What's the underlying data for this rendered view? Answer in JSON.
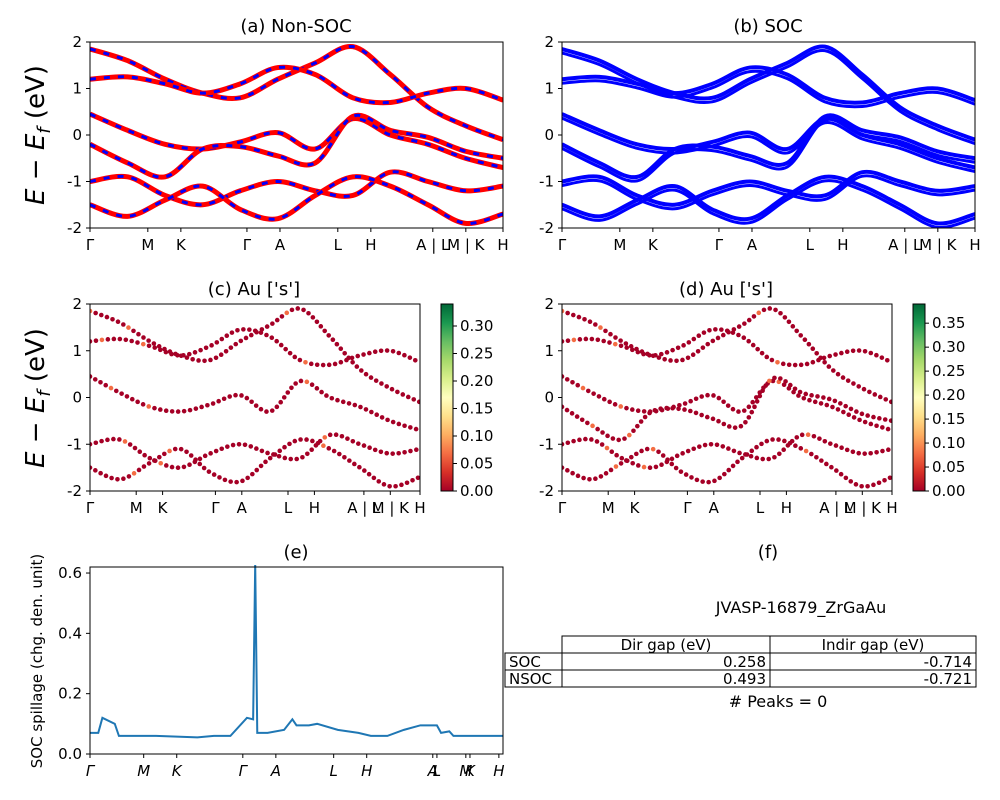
{
  "shared": {
    "ylabel_bands": "E − E_f (eV)",
    "k_labels": [
      "Γ",
      "M",
      "K",
      "Γ",
      "A",
      "L",
      "H",
      "A | L",
      "M | K",
      "H"
    ],
    "k_labels_short": [
      "Γ",
      "M",
      "K",
      "Γ",
      "A",
      "L",
      "H",
      "A | L",
      "M | K",
      "H"
    ]
  },
  "chart_data": [
    {
      "id": "a",
      "type": "line",
      "title": "(a) Non-SOC",
      "ylabel": "$E - E_f$ (eV)",
      "ylim": [
        -2,
        2
      ],
      "yticks": [
        -2,
        -1,
        0,
        1,
        2
      ],
      "xticks": [
        "Γ",
        "M",
        "K",
        "Γ",
        "A",
        "L",
        "H",
        "A | L",
        "M | K",
        "H"
      ],
      "colors": [
        "#ff0000",
        "#0000ff"
      ],
      "series": [
        {
          "values": [
            1.85,
            1.6,
            1.2,
            0.9,
            0.8,
            1.2,
            1.55,
            1.9,
            1.3,
            0.6,
            0.2,
            -0.1
          ]
        },
        {
          "values": [
            1.2,
            1.25,
            1.1,
            0.9,
            1.1,
            1.45,
            1.3,
            0.8,
            0.7,
            0.9,
            1.0,
            0.75
          ]
        },
        {
          "values": [
            0.45,
            0.1,
            -0.2,
            -0.3,
            -0.15,
            0.05,
            -0.3,
            0.35,
            0.0,
            -0.2,
            -0.5,
            -0.7
          ]
        },
        {
          "values": [
            -0.2,
            -0.6,
            -0.9,
            -0.3,
            -0.25,
            -0.45,
            -0.6,
            0.4,
            0.1,
            -0.05,
            -0.35,
            -0.5
          ]
        },
        {
          "values": [
            -1.0,
            -0.9,
            -1.3,
            -1.5,
            -1.2,
            -1.0,
            -1.2,
            -1.3,
            -0.8,
            -1.0,
            -1.2,
            -1.1
          ]
        },
        {
          "values": [
            -1.5,
            -1.75,
            -1.4,
            -1.1,
            -1.6,
            -1.8,
            -1.3,
            -0.9,
            -1.1,
            -1.5,
            -1.9,
            -1.7
          ]
        }
      ]
    },
    {
      "id": "b",
      "type": "line",
      "title": "(b) SOC",
      "ylim": [
        -2,
        2
      ],
      "yticks": [
        -2,
        -1,
        0,
        1,
        2
      ],
      "xticks": [
        "Γ",
        "M",
        "K",
        "Γ",
        "A",
        "L",
        "H",
        "A | L",
        "M | K",
        "H"
      ],
      "colors": [
        "#0000ff"
      ],
      "series": [
        {
          "values": [
            1.85,
            1.6,
            1.2,
            0.9,
            0.8,
            1.2,
            1.55,
            1.9,
            1.3,
            0.6,
            0.2,
            -0.1
          ]
        },
        {
          "values": [
            1.2,
            1.25,
            1.1,
            0.9,
            1.1,
            1.45,
            1.3,
            0.8,
            0.7,
            0.9,
            1.0,
            0.75
          ]
        },
        {
          "values": [
            0.45,
            0.1,
            -0.2,
            -0.3,
            -0.15,
            0.05,
            -0.3,
            0.35,
            0.0,
            -0.2,
            -0.5,
            -0.7
          ]
        },
        {
          "values": [
            -0.2,
            -0.6,
            -0.9,
            -0.3,
            -0.25,
            -0.45,
            -0.6,
            0.4,
            0.1,
            -0.05,
            -0.35,
            -0.5
          ]
        },
        {
          "values": [
            -1.0,
            -0.9,
            -1.3,
            -1.5,
            -1.2,
            -1.0,
            -1.2,
            -1.3,
            -0.8,
            -1.0,
            -1.2,
            -1.1
          ]
        },
        {
          "values": [
            -1.5,
            -1.75,
            -1.4,
            -1.1,
            -1.6,
            -1.8,
            -1.3,
            -0.9,
            -1.1,
            -1.5,
            -1.9,
            -1.7
          ]
        }
      ]
    },
    {
      "id": "c",
      "type": "scatter",
      "title": "(c)  Au ['s']",
      "ylabel": "$E - E_f$ (eV)",
      "ylim": [
        -2,
        2
      ],
      "yticks": [
        -2,
        -1,
        0,
        1,
        2
      ],
      "xticks": [
        "Γ",
        "M",
        "K",
        "Γ",
        "A",
        "L",
        "H",
        "A | L",
        "M | K",
        "H"
      ],
      "colorbar": {
        "min": 0,
        "max": 0.34,
        "ticks": [
          "0.00",
          "0.05",
          "0.10",
          "0.15",
          "0.20",
          "0.25",
          "0.30"
        ],
        "cmap": "RdYlGn"
      },
      "series": [
        {
          "values": [
            1.85,
            1.6,
            1.2,
            0.9,
            0.8,
            1.2,
            1.55,
            1.9,
            1.3,
            0.6,
            0.2,
            -0.1
          ]
        },
        {
          "values": [
            1.2,
            1.25,
            1.1,
            0.9,
            1.1,
            1.45,
            1.3,
            0.8,
            0.7,
            0.9,
            1.0,
            0.75
          ]
        },
        {
          "values": [
            0.45,
            0.1,
            -0.2,
            -0.3,
            -0.15,
            0.05,
            -0.3,
            0.35,
            0.0,
            -0.2,
            -0.5,
            -0.7
          ]
        },
        {
          "values": [
            -1.0,
            -0.9,
            -1.3,
            -1.5,
            -1.2,
            -1.0,
            -1.2,
            -1.3,
            -0.8,
            -1.0,
            -1.2,
            -1.1
          ]
        },
        {
          "values": [
            -1.5,
            -1.75,
            -1.4,
            -1.1,
            -1.6,
            -1.8,
            -1.3,
            -0.9,
            -1.1,
            -1.5,
            -1.9,
            -1.7
          ]
        }
      ]
    },
    {
      "id": "d",
      "type": "scatter",
      "title": "(d) Au ['s']",
      "ylim": [
        -2,
        2
      ],
      "yticks": [
        -2,
        -1,
        0,
        1,
        2
      ],
      "xticks": [
        "Γ",
        "M",
        "K",
        "Γ",
        "A",
        "L",
        "H",
        "A | L",
        "M | K",
        "H"
      ],
      "colorbar": {
        "min": 0,
        "max": 0.39,
        "ticks": [
          "0.00",
          "0.05",
          "0.10",
          "0.15",
          "0.20",
          "0.25",
          "0.30",
          "0.35"
        ],
        "cmap": "RdYlGn"
      },
      "series": [
        {
          "values": [
            1.85,
            1.6,
            1.2,
            0.9,
            0.8,
            1.2,
            1.55,
            1.9,
            1.3,
            0.6,
            0.2,
            -0.1
          ]
        },
        {
          "values": [
            1.2,
            1.25,
            1.1,
            0.9,
            1.1,
            1.45,
            1.3,
            0.8,
            0.7,
            0.9,
            1.0,
            0.75
          ]
        },
        {
          "values": [
            0.45,
            0.1,
            -0.2,
            -0.3,
            -0.15,
            0.05,
            -0.3,
            0.35,
            0.0,
            -0.2,
            -0.5,
            -0.7
          ]
        },
        {
          "values": [
            -0.2,
            -0.6,
            -0.9,
            -0.3,
            -0.25,
            -0.45,
            -0.6,
            0.4,
            0.1,
            -0.05,
            -0.35,
            -0.5
          ]
        },
        {
          "values": [
            -1.0,
            -0.9,
            -1.3,
            -1.5,
            -1.2,
            -1.0,
            -1.2,
            -1.3,
            -0.8,
            -1.0,
            -1.2,
            -1.1
          ]
        },
        {
          "values": [
            -1.5,
            -1.75,
            -1.4,
            -1.1,
            -1.6,
            -1.8,
            -1.3,
            -0.9,
            -1.1,
            -1.5,
            -1.9,
            -1.7
          ]
        }
      ]
    },
    {
      "id": "e",
      "type": "line",
      "title": "(e)",
      "ylabel": "SOC spillage (chg. den. unit)",
      "ylim": [
        0,
        0.62
      ],
      "yticks": [
        0.0,
        0.2,
        0.4,
        0.6
      ],
      "xticks": [
        "Γ",
        "M",
        "K",
        "Γ",
        "A",
        "L",
        "H",
        "A",
        "L",
        "M",
        "K",
        "H"
      ],
      "color": "#1f77b4",
      "x": [
        0,
        0.02,
        0.03,
        0.06,
        0.07,
        0.1,
        0.16,
        0.26,
        0.3,
        0.34,
        0.38,
        0.395,
        0.4,
        0.405,
        0.43,
        0.47,
        0.49,
        0.5,
        0.53,
        0.55,
        0.6,
        0.65,
        0.68,
        0.72,
        0.76,
        0.8,
        0.84,
        0.85,
        0.87,
        0.88,
        0.9,
        0.93,
        0.95,
        0.97,
        1.0
      ],
      "values": [
        0.07,
        0.07,
        0.12,
        0.1,
        0.06,
        0.06,
        0.06,
        0.055,
        0.06,
        0.06,
        0.12,
        0.115,
        0.63,
        0.07,
        0.07,
        0.08,
        0.115,
        0.095,
        0.095,
        0.1,
        0.08,
        0.07,
        0.06,
        0.06,
        0.08,
        0.095,
        0.095,
        0.07,
        0.075,
        0.06,
        0.06,
        0.06,
        0.06,
        0.06,
        0.06
      ]
    }
  ],
  "panel_f": {
    "title": "(f)",
    "material": "JVASP-16879_ZrGaAu",
    "table": {
      "headers": [
        "",
        "Dir gap (eV)",
        "Indir gap (eV)"
      ],
      "rows": [
        {
          "label": "SOC",
          "dir": "0.258",
          "indir": "-0.714"
        },
        {
          "label": "NSOC",
          "dir": "0.493",
          "indir": "-0.721"
        }
      ]
    },
    "peaks": "# Peaks = 0"
  }
}
